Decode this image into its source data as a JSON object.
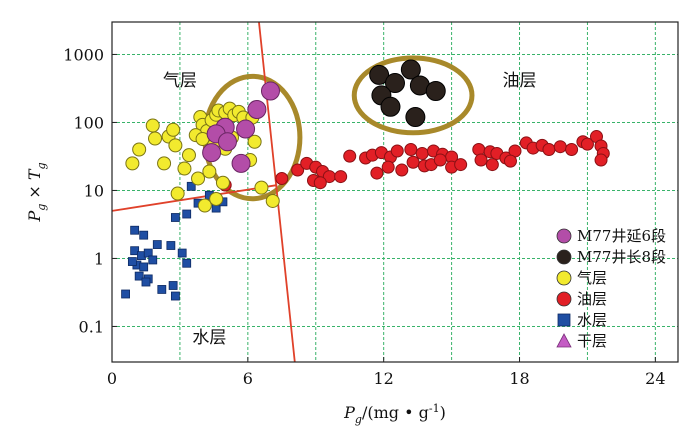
{
  "chart_data": {
    "type": "scatter",
    "x_axis": {
      "label_main": "P",
      "label_sub": "g",
      "label_units": "/(mg • g",
      "label_sup": "-1",
      "label_close": ")",
      "range": [
        0,
        25
      ],
      "ticks": [
        0,
        6,
        12,
        18,
        24
      ],
      "tick_labels": [
        "0",
        "6",
        "12",
        "18",
        "24"
      ]
    },
    "y_axis": {
      "label_p": "P",
      "label_p_sub": "g",
      "label_times": " × ",
      "label_t": "T",
      "label_t_sub": "g",
      "scale": "log",
      "range": [
        0.03,
        3000
      ],
      "ticks": [
        0.1,
        1,
        10,
        100,
        1000
      ],
      "tick_labels": [
        "0.1",
        "1",
        "10",
        "100",
        "1000"
      ]
    },
    "grid": true,
    "grid_color": "#39b36a",
    "region_labels": [
      {
        "text": "气层",
        "x": 3.0,
        "y": 420
      },
      {
        "text": "油层",
        "x": 18.0,
        "y": 420
      },
      {
        "text": "水层",
        "x": 4.3,
        "y": 0.07
      }
    ],
    "boundary_lines": [
      {
        "points": [
          [
            6.3,
            12000
          ],
          [
            8.2,
            0.012
          ]
        ]
      },
      {
        "points": [
          [
            0,
            5
          ],
          [
            7.3,
            12
          ]
        ]
      }
    ],
    "highlight_ellipses": [
      {
        "cx": 6.2,
        "cy": 60,
        "rx": 2.1,
        "ry_log": 0.9,
        "color": "#a8892a"
      },
      {
        "cx": 13.3,
        "cy": 250,
        "rx": 2.6,
        "ry_log": 0.55,
        "color": "#a8892a"
      }
    ],
    "legend": {
      "placement": "lower-right",
      "items": [
        {
          "label": "M77井延6段",
          "marker": "circle",
          "color": "#b34da8"
        },
        {
          "label": "M77井长8段",
          "marker": "circle",
          "color": "#2a211c"
        },
        {
          "label": "气层",
          "marker": "circle",
          "color": "#f2ea2e"
        },
        {
          "label": "油层",
          "marker": "circle",
          "color": "#e21f26"
        },
        {
          "label": "水层",
          "marker": "square",
          "color": "#1f4ea3"
        },
        {
          "label": "干层",
          "marker": "triangle",
          "color": "#c45cc4"
        }
      ]
    },
    "series": [
      {
        "name": "M77井延6段",
        "marker": "circle",
        "color": "#b34da8",
        "points": [
          [
            7.0,
            290
          ],
          [
            6.4,
            155
          ],
          [
            5.0,
            85
          ],
          [
            5.9,
            80
          ],
          [
            4.6,
            68
          ],
          [
            5.1,
            52
          ],
          [
            4.4,
            36
          ],
          [
            5.7,
            25
          ]
        ]
      },
      {
        "name": "M77井长8段",
        "marker": "circle",
        "color": "#2a211c",
        "points": [
          [
            11.8,
            500
          ],
          [
            13.2,
            600
          ],
          [
            12.5,
            380
          ],
          [
            13.6,
            350
          ],
          [
            14.3,
            290
          ],
          [
            11.9,
            250
          ],
          [
            12.3,
            170
          ],
          [
            13.4,
            120
          ]
        ]
      },
      {
        "name": "气层",
        "marker": "circle",
        "color": "#f2ea2e",
        "points": [
          [
            1.8,
            90
          ],
          [
            1.9,
            58
          ],
          [
            1.2,
            40
          ],
          [
            2.5,
            62
          ],
          [
            2.7,
            78
          ],
          [
            2.8,
            46
          ],
          [
            3.4,
            33
          ],
          [
            2.3,
            25
          ],
          [
            0.9,
            25
          ],
          [
            3.9,
            120
          ],
          [
            4.0,
            92
          ],
          [
            4.2,
            75
          ],
          [
            4.4,
            108
          ],
          [
            4.6,
            130
          ],
          [
            4.7,
            150
          ],
          [
            5.0,
            140
          ],
          [
            5.2,
            160
          ],
          [
            5.4,
            128
          ],
          [
            5.6,
            143
          ],
          [
            5.8,
            118
          ],
          [
            3.7,
            65
          ],
          [
            4.0,
            57
          ],
          [
            4.5,
            46
          ],
          [
            5.0,
            41
          ],
          [
            5.3,
            60
          ],
          [
            6.2,
            118
          ],
          [
            6.3,
            52
          ],
          [
            6.1,
            28
          ],
          [
            3.2,
            21
          ],
          [
            4.3,
            19
          ],
          [
            3.8,
            15
          ],
          [
            4.9,
            13
          ],
          [
            6.6,
            11
          ],
          [
            4.6,
            7.5
          ],
          [
            4.1,
            6
          ],
          [
            2.9,
            9
          ],
          [
            7.1,
            7
          ]
        ]
      },
      {
        "name": "油层",
        "marker": "circle",
        "color": "#e21f26",
        "points": [
          [
            5.0,
            12
          ],
          [
            7.5,
            15
          ],
          [
            8.2,
            20
          ],
          [
            8.6,
            25
          ],
          [
            9.0,
            22
          ],
          [
            9.3,
            19
          ],
          [
            9.6,
            16
          ],
          [
            8.9,
            14
          ],
          [
            9.2,
            13
          ],
          [
            10.1,
            16
          ],
          [
            10.5,
            32
          ],
          [
            11.2,
            30
          ],
          [
            11.5,
            33
          ],
          [
            11.9,
            36
          ],
          [
            12.3,
            31
          ],
          [
            12.6,
            38
          ],
          [
            13.2,
            40
          ],
          [
            13.7,
            35
          ],
          [
            14.2,
            38
          ],
          [
            14.6,
            34
          ],
          [
            15.0,
            31
          ],
          [
            11.7,
            18
          ],
          [
            12.2,
            22
          ],
          [
            12.8,
            20
          ],
          [
            13.3,
            26
          ],
          [
            13.8,
            23
          ],
          [
            14.1,
            24
          ],
          [
            14.5,
            28
          ],
          [
            15.0,
            22
          ],
          [
            15.4,
            24
          ],
          [
            16.2,
            40
          ],
          [
            16.7,
            37
          ],
          [
            17.0,
            35
          ],
          [
            17.4,
            30
          ],
          [
            17.8,
            38
          ],
          [
            18.3,
            50
          ],
          [
            18.6,
            42
          ],
          [
            19.0,
            46
          ],
          [
            19.3,
            40
          ],
          [
            19.8,
            44
          ],
          [
            20.3,
            40
          ],
          [
            20.8,
            52
          ],
          [
            21.0,
            48
          ],
          [
            21.4,
            62
          ],
          [
            21.6,
            45
          ],
          [
            21.7,
            35
          ],
          [
            21.6,
            28
          ],
          [
            16.3,
            28
          ],
          [
            16.8,
            24
          ],
          [
            17.6,
            27
          ]
        ]
      },
      {
        "name": "水层",
        "marker": "square",
        "color": "#1f4ea3",
        "points": [
          [
            0.6,
            0.3
          ],
          [
            1.0,
            2.6
          ],
          [
            1.4,
            2.2
          ],
          [
            1.0,
            1.3
          ],
          [
            1.3,
            1.1
          ],
          [
            1.6,
            1.2
          ],
          [
            1.8,
            0.95
          ],
          [
            1.1,
            0.8
          ],
          [
            1.4,
            0.75
          ],
          [
            0.9,
            0.9
          ],
          [
            1.2,
            0.55
          ],
          [
            1.6,
            0.5
          ],
          [
            1.5,
            0.45
          ],
          [
            2.2,
            0.35
          ],
          [
            2.8,
            0.28
          ],
          [
            2.7,
            0.4
          ],
          [
            2.0,
            1.6
          ],
          [
            2.6,
            1.55
          ],
          [
            3.1,
            1.2
          ],
          [
            3.3,
            0.85
          ],
          [
            2.8,
            4.0
          ],
          [
            3.3,
            4.5
          ],
          [
            3.8,
            6.5
          ],
          [
            4.3,
            8.5
          ],
          [
            3.5,
            11.5
          ],
          [
            4.6,
            5.5
          ],
          [
            4.9,
            6.8
          ]
        ]
      }
    ]
  }
}
